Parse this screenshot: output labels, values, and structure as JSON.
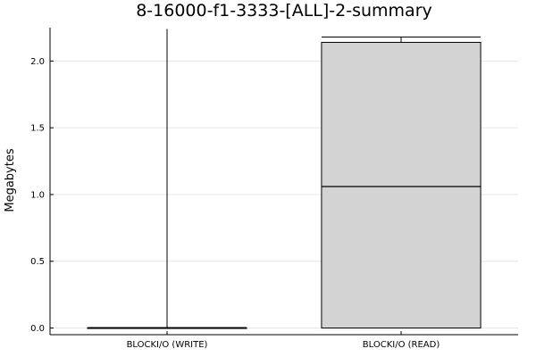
{
  "chart_data": {
    "type": "box",
    "title": "8-16000-f1-3333-[ALL]-2-summary",
    "xlabel": "",
    "ylabel": "Megabytes",
    "categories": [
      "BLOCKI/O (WRITE)",
      "BLOCKI/O (READ)"
    ],
    "ylim": [
      -0.05,
      2.25
    ],
    "yticks": [
      0.0,
      0.5,
      1.0,
      1.5,
      2.0
    ],
    "ytick_labels": [
      "0.0",
      "0.5",
      "1.0",
      "1.5",
      "2.0"
    ],
    "grid": true,
    "legend": "none",
    "boxes": [
      {
        "category": "BLOCKI/O (WRITE)",
        "min": 0.0,
        "q1": 0.0,
        "median": 0.0,
        "q3": 0.0,
        "max": 2.24
      },
      {
        "category": "BLOCKI/O (READ)",
        "min": 0.0,
        "q1": 0.0,
        "median": 1.06,
        "q3": 2.14,
        "max": 2.18
      }
    ],
    "colors": {
      "box_fill": "#d3d3d3",
      "box_stroke": "#000000",
      "whisker": "#000000",
      "grid": "#e6e6e6",
      "background": "#ffffff"
    }
  }
}
